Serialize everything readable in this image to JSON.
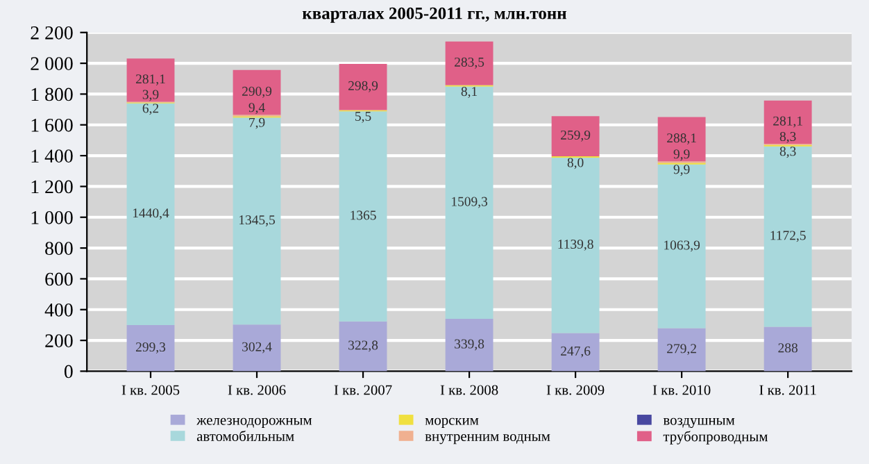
{
  "chart_data": {
    "type": "bar",
    "stacked": true,
    "title": "кварталах 2005-2011 гг., млн.тонн",
    "categories": [
      "I кв. 2005",
      "I кв. 2006",
      "I кв. 2007",
      "I кв. 2008",
      "I кв. 2009",
      "I кв. 2010",
      "I кв. 2011"
    ],
    "series": [
      {
        "name": "железнодорожным",
        "color": "#a9a9d8",
        "values": [
          299.3,
          302.4,
          322.8,
          339.8,
          247.6,
          279.2,
          288
        ],
        "value_labels": [
          "299,3",
          "302,4",
          "322,8",
          "339,8",
          "247,6",
          "279,2",
          "288"
        ]
      },
      {
        "name": "автомобильным",
        "color": "#a8d8dc",
        "values": [
          1440.4,
          1345.5,
          1365,
          1509.3,
          1139.8,
          1063.9,
          1172.5
        ],
        "value_labels": [
          "1440,4",
          "1345,5",
          "1365",
          "1509,3",
          "1139,8",
          "1063,9",
          "1172,5"
        ]
      },
      {
        "name": "морским",
        "color": "#f0e040",
        "values": [
          6.2,
          7.9,
          5.5,
          8.1,
          8.0,
          9.9,
          8.3
        ],
        "value_labels": [
          "6,2",
          "7,9",
          "5,5",
          "8,1",
          "8,0",
          "9,9",
          "8,3"
        ]
      },
      {
        "name": "внутренним водным",
        "color": "#f0b090",
        "values": [
          3.9,
          9.4,
          4,
          1.1,
          1,
          9.9,
          8.3
        ],
        "value_labels": [
          "3,9",
          "9,4",
          null,
          null,
          null,
          "9,9",
          "8,3"
        ]
      },
      {
        "name": "воздушным",
        "color": "#4848a0",
        "values": [
          null,
          null,
          null,
          null,
          null,
          null,
          null
        ]
      },
      {
        "name": "трубопроводным",
        "color": "#e06088",
        "values": [
          281.1,
          290.9,
          298.9,
          283.5,
          259.9,
          288.1,
          281.1
        ],
        "value_labels": [
          "281,1",
          "290,9",
          "298,9",
          "283,5",
          "259,9",
          "288,1",
          "281,1"
        ]
      }
    ],
    "ylim": [
      0,
      2200
    ],
    "yticks": [
      0,
      200,
      400,
      600,
      800,
      {
        "value": 1000,
        "label": "1 000"
      },
      {
        "value": 1200,
        "label": "1 200"
      },
      {
        "value": 1400,
        "label": "1 400"
      },
      {
        "value": 1600,
        "label": "1 600"
      },
      {
        "value": 1800,
        "label": "1 800"
      },
      {
        "value": 2000,
        "label": "2 000"
      },
      {
        "value": 2200,
        "label": "2 200"
      }
    ],
    "grid": "y",
    "legend": "bottom"
  }
}
